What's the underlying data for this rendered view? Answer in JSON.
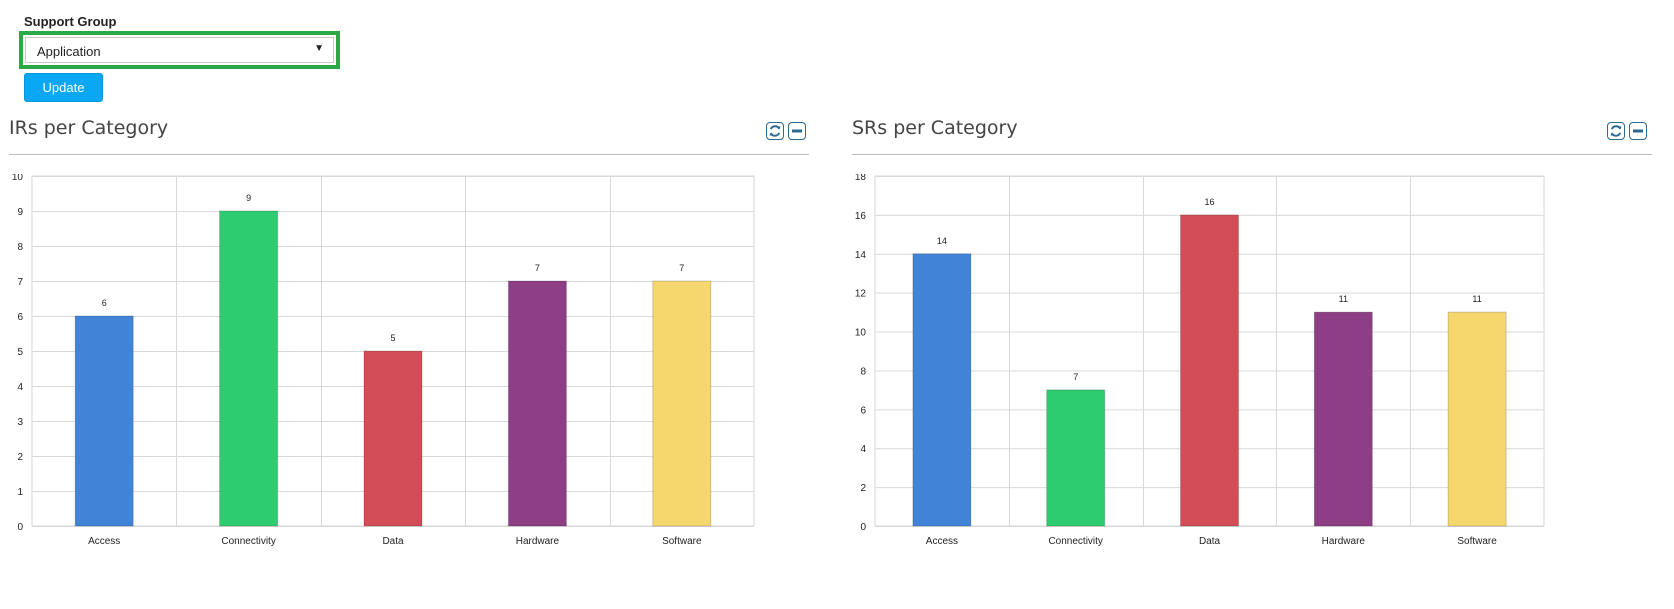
{
  "filter": {
    "label": "Support Group",
    "selected": "Application",
    "update_label": "Update"
  },
  "panels": [
    {
      "title": "IRs per Category",
      "refresh_icon": "refresh-icon",
      "collapse_icon": "minus-icon"
    },
    {
      "title": "SRs per Category",
      "refresh_icon": "refresh-icon",
      "collapse_icon": "minus-icon"
    }
  ],
  "colors": {
    "access": "#4183d7",
    "connectivity": "#2ecc71",
    "data": "#d24d57",
    "hardware": "#8e3e85",
    "software": "#f5d76e",
    "accent": "#0aa7f5",
    "focus": "#2aa946"
  },
  "chart_data": [
    {
      "type": "bar",
      "title": "IRs per Category",
      "categories": [
        "Access",
        "Connectivity",
        "Data",
        "Hardware",
        "Software"
      ],
      "values": [
        6,
        9,
        5,
        7,
        7
      ],
      "colors": [
        "#4183d7",
        "#2ecc71",
        "#d24d57",
        "#8e3e85",
        "#f5d76e"
      ],
      "ylim": [
        0,
        10
      ],
      "yticks": [
        0,
        1,
        2,
        3,
        4,
        5,
        6,
        7,
        8,
        9,
        10
      ],
      "grid": true,
      "data_labels": true
    },
    {
      "type": "bar",
      "title": "SRs per Category",
      "categories": [
        "Access",
        "Connectivity",
        "Data",
        "Hardware",
        "Software"
      ],
      "values": [
        14,
        7,
        16,
        11,
        11
      ],
      "colors": [
        "#4183d7",
        "#2ecc71",
        "#d24d57",
        "#8e3e85",
        "#f5d76e"
      ],
      "ylim": [
        0,
        18
      ],
      "yticks": [
        0,
        2,
        4,
        6,
        8,
        10,
        12,
        14,
        16,
        18
      ],
      "grid": true,
      "data_labels": true
    }
  ]
}
